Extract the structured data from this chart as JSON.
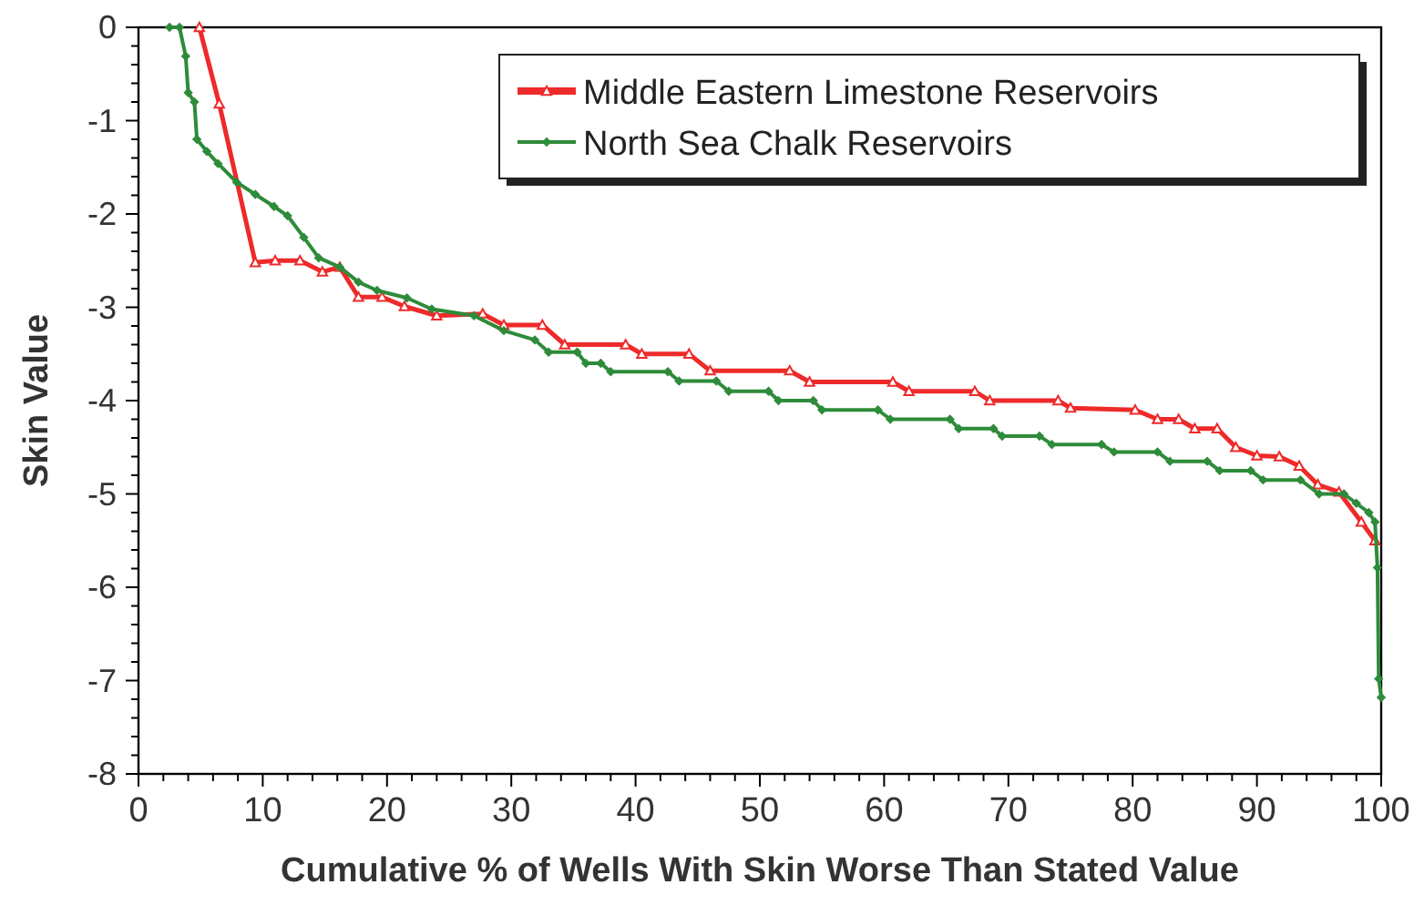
{
  "chart_data": {
    "type": "line",
    "xlabel": "Cumulative % of Wells With Skin Worse Than Stated Value",
    "ylabel": "Skin Value",
    "xlim": [
      0,
      100
    ],
    "ylim": [
      -8,
      0
    ],
    "xticks": [
      0,
      10,
      20,
      30,
      40,
      50,
      60,
      70,
      80,
      90,
      100
    ],
    "yticks": [
      -8,
      -7,
      -6,
      -5,
      -4,
      -3,
      -2,
      -1,
      0
    ],
    "grid": false,
    "legend": "top right",
    "series": [
      {
        "name": "Middle Eastern Limestone Reservoirs",
        "color": "#ee2a2a",
        "marker": "triangle",
        "x": [
          4.9,
          6.5,
          9.4,
          11,
          13,
          14.8,
          16.2,
          17.7,
          19.6,
          21.4,
          24,
          27.7,
          29.4,
          32.5,
          34.3,
          39.2,
          40.5,
          44.3,
          46,
          52.4,
          54,
          60.7,
          62,
          67.3,
          68.5,
          74,
          75,
          80.2,
          82,
          83.7,
          85,
          86.8,
          88.3,
          90,
          91.8,
          93.4,
          94.9,
          96.6,
          98.4,
          99.5
        ],
        "values": [
          0,
          -0.82,
          -2.52,
          -2.5,
          -2.5,
          -2.62,
          -2.57,
          -2.89,
          -2.89,
          -2.99,
          -3.09,
          -3.07,
          -3.19,
          -3.19,
          -3.4,
          -3.4,
          -3.5,
          -3.5,
          -3.68,
          -3.68,
          -3.8,
          -3.8,
          -3.9,
          -3.9,
          -4,
          -4,
          -4.08,
          -4.1,
          -4.2,
          -4.2,
          -4.3,
          -4.3,
          -4.5,
          -4.59,
          -4.6,
          -4.7,
          -4.9,
          -4.98,
          -5.3,
          -5.5
        ]
      },
      {
        "name": "North Sea Chalk Reservoirs",
        "color": "#2e8b3a",
        "marker": "diamond",
        "x": [
          2.5,
          3.3,
          3.8,
          4,
          4.5,
          4.7,
          5.5,
          6.4,
          7.9,
          9.4,
          10.9,
          12,
          13.3,
          14.5,
          16.2,
          17.7,
          19.2,
          21.6,
          23.6,
          27,
          29.4,
          31.9,
          33,
          35.3,
          36,
          37.2,
          38,
          42.6,
          43.5,
          46.5,
          47.5,
          50.7,
          51.5,
          54.3,
          55,
          59.5,
          60.5,
          65.3,
          66,
          68.8,
          69.5,
          72.5,
          73.5,
          77.5,
          78.5,
          82,
          83,
          86,
          87,
          89.5,
          90.5,
          93.5,
          95,
          97,
          98,
          99,
          99.5,
          99.7,
          99.8,
          100
        ],
        "values": [
          0,
          0,
          -0.31,
          -0.7,
          -0.8,
          -1.2,
          -1.33,
          -1.46,
          -1.66,
          -1.79,
          -1.92,
          -2.02,
          -2.25,
          -2.47,
          -2.57,
          -2.73,
          -2.82,
          -2.9,
          -3.02,
          -3.09,
          -3.25,
          -3.35,
          -3.48,
          -3.48,
          -3.6,
          -3.6,
          -3.69,
          -3.69,
          -3.79,
          -3.79,
          -3.9,
          -3.9,
          -4,
          -4,
          -4.1,
          -4.1,
          -4.2,
          -4.2,
          -4.3,
          -4.3,
          -4.38,
          -4.38,
          -4.47,
          -4.47,
          -4.55,
          -4.55,
          -4.65,
          -4.65,
          -4.75,
          -4.75,
          -4.85,
          -4.85,
          -5,
          -5,
          -5.1,
          -5.2,
          -5.3,
          -5.79,
          -6.98,
          -7.18
        ]
      }
    ]
  }
}
